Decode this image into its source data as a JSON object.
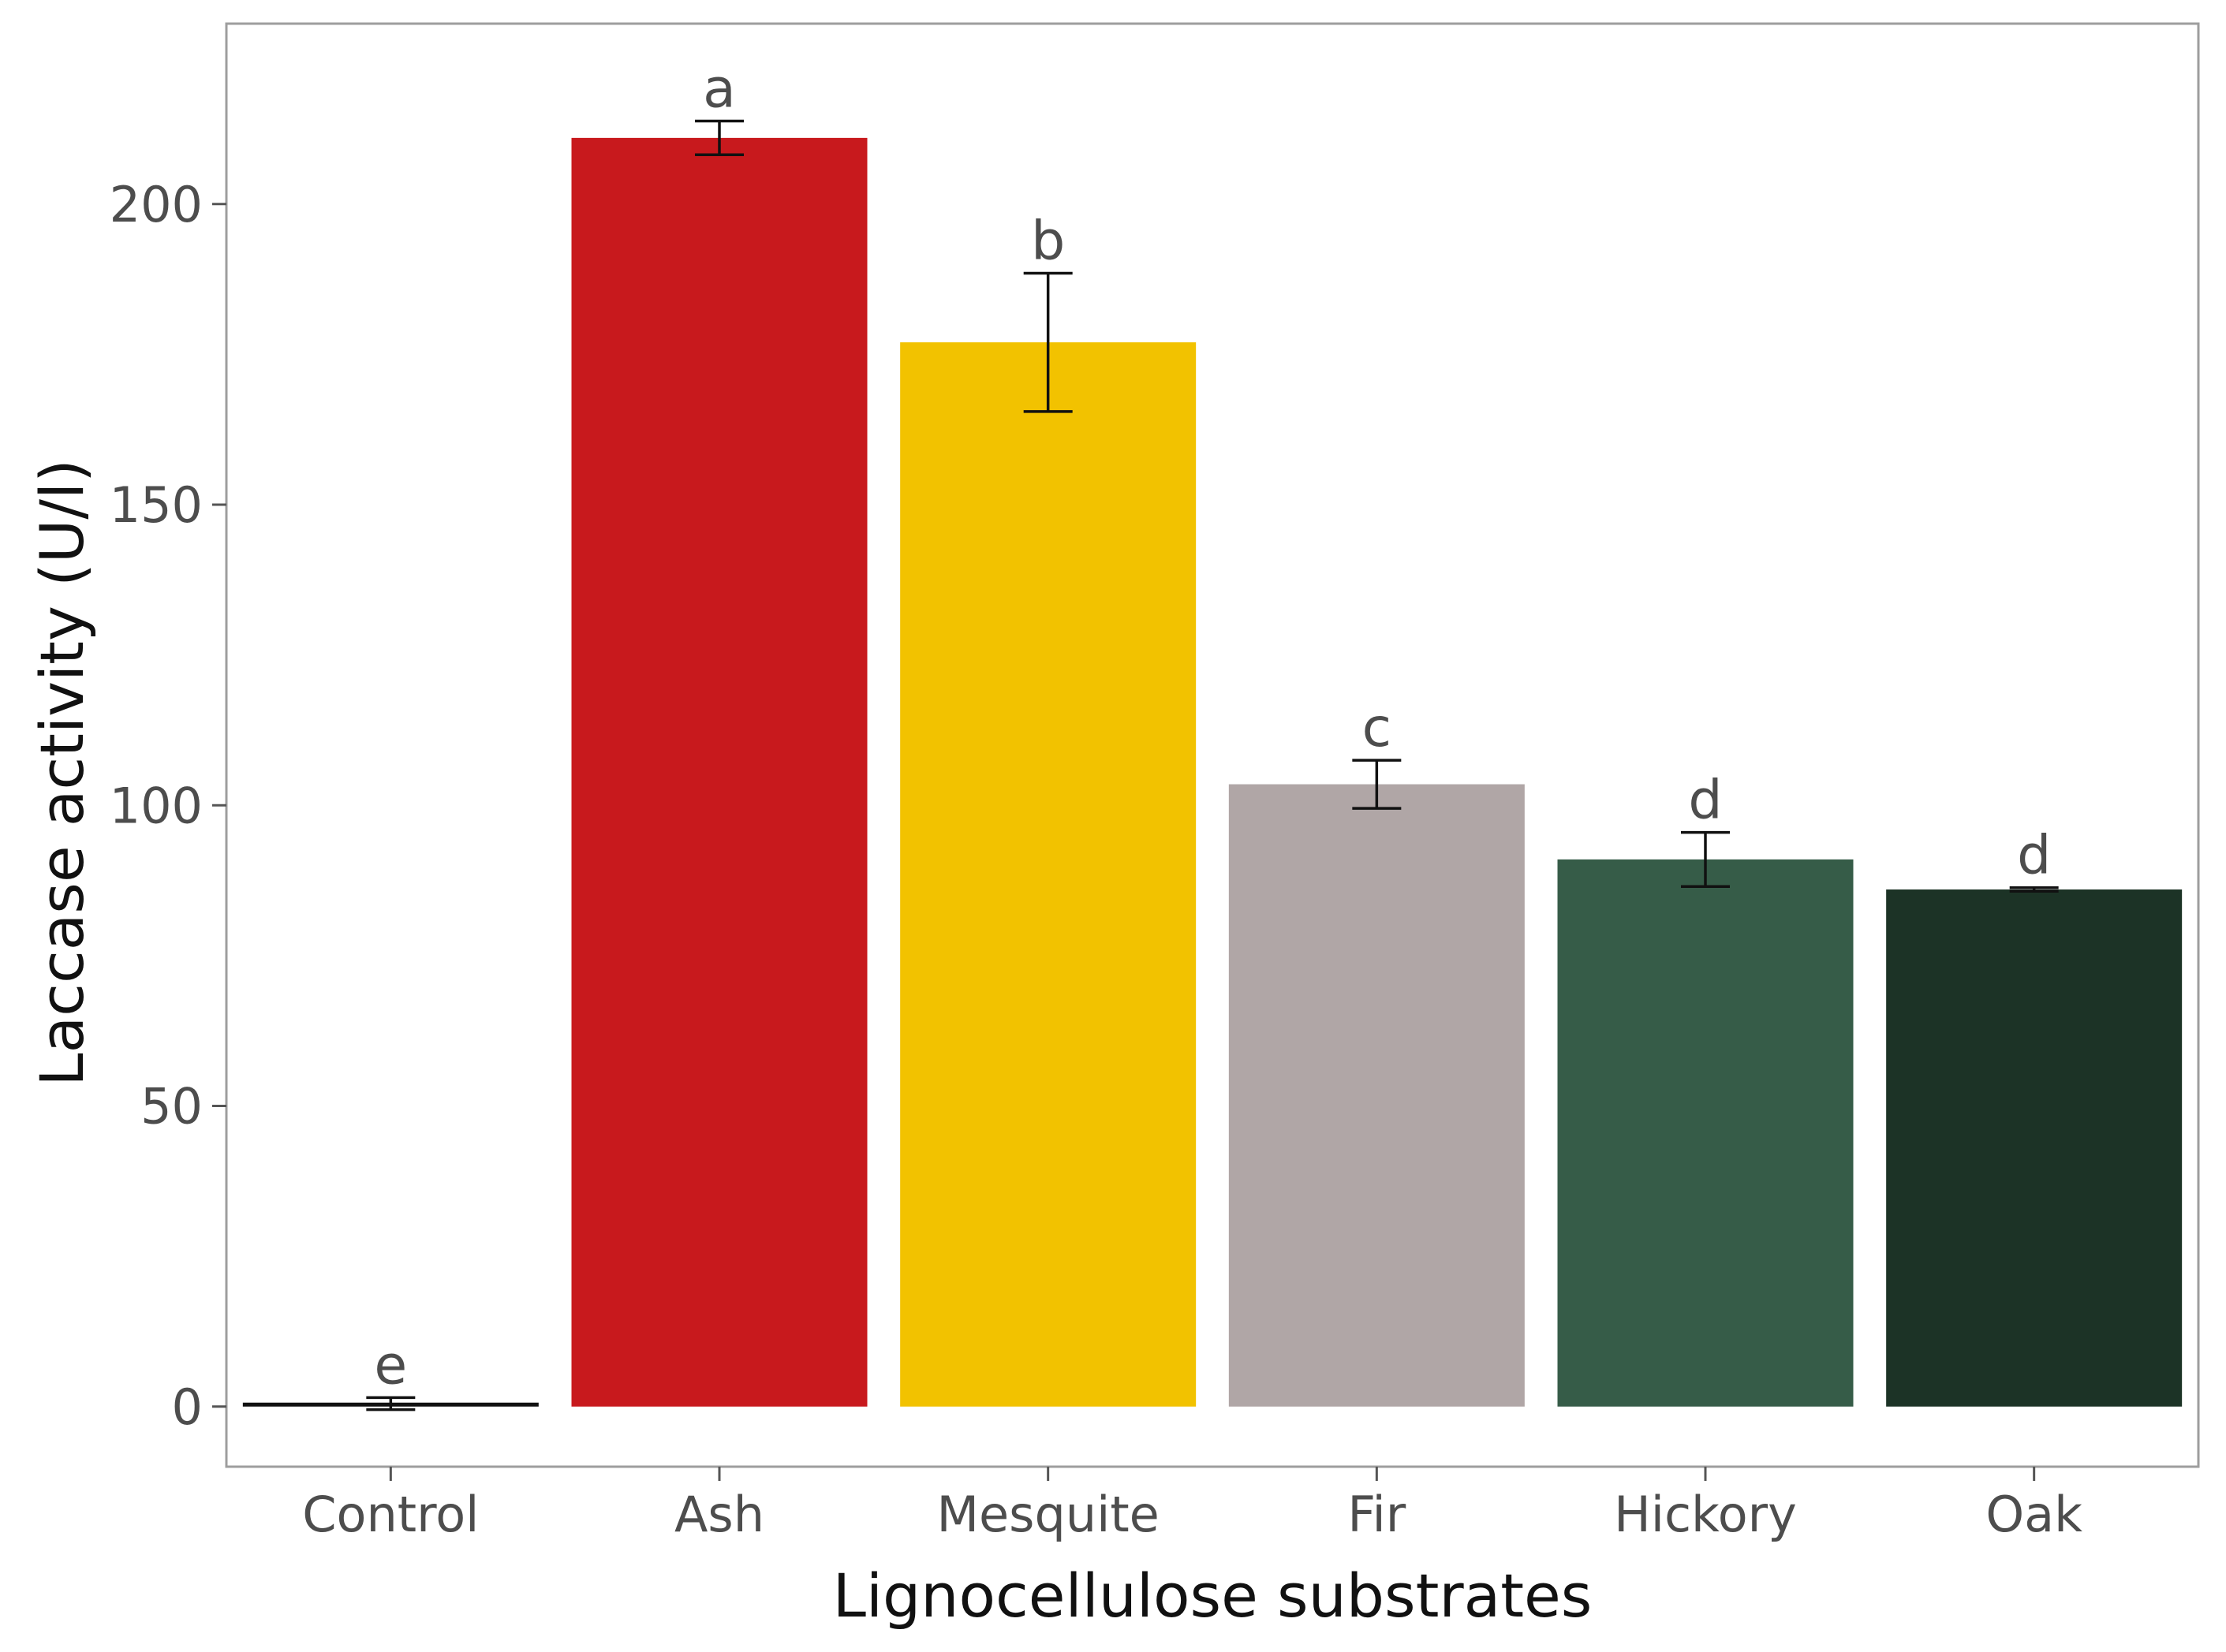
{
  "chart_data": {
    "type": "bar",
    "title": "",
    "xlabel": "Lignocellulose substrates",
    "ylabel": "Laccase activity (U/l)",
    "ylim": [
      -10,
      230
    ],
    "yticks": [
      0,
      50,
      100,
      150,
      200
    ],
    "grid": false,
    "legend": "none",
    "categories": [
      "Control",
      "Ash",
      "Mesquite",
      "Fir",
      "Hickory",
      "Oak"
    ],
    "values": [
      0.5,
      211,
      177,
      103.5,
      91,
      86
    ],
    "error": [
      1.0,
      2.8,
      11.5,
      4.0,
      4.5,
      0.3
    ],
    "significance_letters": [
      "e",
      "a",
      "b",
      "c",
      "d",
      "d"
    ],
    "colors": [
      "#111111",
      "#c8191d",
      "#f2c200",
      "#b0a6a6",
      "#365c48",
      "#1c3326"
    ]
  }
}
